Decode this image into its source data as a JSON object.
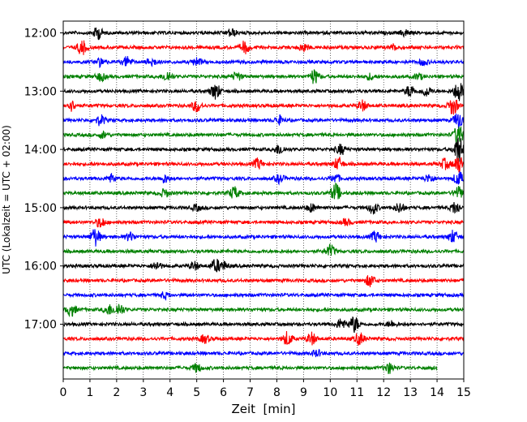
{
  "chart_data": {
    "type": "line",
    "title": "",
    "xlabel": "Zeit  [min]",
    "ylabel": "UTC (Lokalzeit = UTC + 02:00)",
    "xlim": [
      0,
      15
    ],
    "x_ticks": [
      0,
      1,
      2,
      3,
      4,
      5,
      6,
      7,
      8,
      9,
      10,
      11,
      12,
      13,
      14,
      15
    ],
    "y_tick_labels": [
      "12:00",
      "13:00",
      "14:00",
      "15:00",
      "16:00",
      "17:00"
    ],
    "grid": "vertical dotted",
    "trace_interval_min": 15,
    "colors": [
      "#000000",
      "#ff0000",
      "#0000ff",
      "#008000"
    ],
    "series": [
      {
        "start": "12:00",
        "color": "#000000",
        "events": [
          {
            "x": 1.3,
            "amp": 0.6
          },
          {
            "x": 6.3,
            "amp": 0.4
          },
          {
            "x": 12.8,
            "amp": 0.3
          }
        ]
      },
      {
        "start": "12:15",
        "color": "#ff0000",
        "events": [
          {
            "x": 0.7,
            "amp": 0.7
          },
          {
            "x": 6.8,
            "amp": 0.6
          },
          {
            "x": 9.0,
            "amp": 0.4
          },
          {
            "x": 12.4,
            "amp": 0.3
          }
        ]
      },
      {
        "start": "12:30",
        "color": "#0000ff",
        "events": [
          {
            "x": 1.4,
            "amp": 0.4
          },
          {
            "x": 2.4,
            "amp": 0.5
          },
          {
            "x": 3.3,
            "amp": 0.4
          },
          {
            "x": 5.0,
            "amp": 0.4
          },
          {
            "x": 13.5,
            "amp": 0.3
          }
        ]
      },
      {
        "start": "12:45",
        "color": "#008000",
        "events": [
          {
            "x": 1.4,
            "amp": 0.4
          },
          {
            "x": 3.9,
            "amp": 0.5
          },
          {
            "x": 6.5,
            "amp": 0.4
          },
          {
            "x": 9.4,
            "amp": 0.7
          },
          {
            "x": 11.5,
            "amp": 0.3
          },
          {
            "x": 13.3,
            "amp": 0.3
          }
        ]
      },
      {
        "start": "13:00",
        "color": "#000000",
        "events": [
          {
            "x": 5.7,
            "amp": 0.8
          },
          {
            "x": 13.0,
            "amp": 0.6
          },
          {
            "x": 13.6,
            "amp": 0.5
          },
          {
            "x": 14.8,
            "amp": 1.0
          }
        ]
      },
      {
        "start": "13:15",
        "color": "#ff0000",
        "events": [
          {
            "x": 0.3,
            "amp": 0.5
          },
          {
            "x": 5.0,
            "amp": 0.6
          },
          {
            "x": 11.2,
            "amp": 0.5
          },
          {
            "x": 14.6,
            "amp": 0.9
          }
        ]
      },
      {
        "start": "13:30",
        "color": "#0000ff",
        "events": [
          {
            "x": 1.4,
            "amp": 0.5
          },
          {
            "x": 8.1,
            "amp": 0.4
          },
          {
            "x": 14.8,
            "amp": 0.9
          }
        ]
      },
      {
        "start": "13:45",
        "color": "#008000",
        "events": [
          {
            "x": 1.5,
            "amp": 0.3
          },
          {
            "x": 14.8,
            "amp": 1.0
          }
        ]
      },
      {
        "start": "14:00",
        "color": "#000000",
        "events": [
          {
            "x": 8.1,
            "amp": 0.5
          },
          {
            "x": 10.4,
            "amp": 0.5
          },
          {
            "x": 14.8,
            "amp": 1.4
          }
        ]
      },
      {
        "start": "14:15",
        "color": "#ff0000",
        "events": [
          {
            "x": 7.3,
            "amp": 0.5
          },
          {
            "x": 10.3,
            "amp": 0.6
          },
          {
            "x": 14.3,
            "amp": 0.5
          },
          {
            "x": 14.8,
            "amp": 0.9
          }
        ]
      },
      {
        "start": "14:30",
        "color": "#0000ff",
        "events": [
          {
            "x": 1.8,
            "amp": 0.4
          },
          {
            "x": 3.8,
            "amp": 0.4
          },
          {
            "x": 8.1,
            "amp": 0.4
          },
          {
            "x": 10.2,
            "amp": 0.4
          },
          {
            "x": 13.7,
            "amp": 0.4
          },
          {
            "x": 14.8,
            "amp": 0.7
          }
        ]
      },
      {
        "start": "14:45",
        "color": "#008000",
        "events": [
          {
            "x": 3.8,
            "amp": 0.4
          },
          {
            "x": 6.4,
            "amp": 0.6
          },
          {
            "x": 10.2,
            "amp": 0.9
          },
          {
            "x": 14.8,
            "amp": 0.6
          }
        ]
      },
      {
        "start": "15:00",
        "color": "#000000",
        "events": [
          {
            "x": 5.0,
            "amp": 0.3
          },
          {
            "x": 9.3,
            "amp": 0.4
          },
          {
            "x": 11.6,
            "amp": 0.6
          },
          {
            "x": 12.6,
            "amp": 0.5
          },
          {
            "x": 14.7,
            "amp": 0.6
          }
        ]
      },
      {
        "start": "15:15",
        "color": "#ff0000",
        "events": [
          {
            "x": 1.4,
            "amp": 0.5
          },
          {
            "x": 10.6,
            "amp": 0.3
          }
        ]
      },
      {
        "start": "15:30",
        "color": "#0000ff",
        "events": [
          {
            "x": 1.2,
            "amp": 0.9
          },
          {
            "x": 2.5,
            "amp": 0.4
          },
          {
            "x": 11.7,
            "amp": 0.5
          },
          {
            "x": 14.6,
            "amp": 0.6
          }
        ]
      },
      {
        "start": "15:45",
        "color": "#008000",
        "events": [
          {
            "x": 10.0,
            "amp": 0.6
          }
        ]
      },
      {
        "start": "16:00",
        "color": "#000000",
        "events": [
          {
            "x": 3.5,
            "amp": 0.4
          },
          {
            "x": 4.9,
            "amp": 0.4
          },
          {
            "x": 5.7,
            "amp": 0.6
          },
          {
            "x": 6.0,
            "amp": 0.4
          }
        ]
      },
      {
        "start": "16:15",
        "color": "#ff0000",
        "events": [
          {
            "x": 11.5,
            "amp": 0.6
          }
        ]
      },
      {
        "start": "16:30",
        "color": "#0000ff",
        "events": [
          {
            "x": 3.8,
            "amp": 0.3
          }
        ]
      },
      {
        "start": "16:45",
        "color": "#008000",
        "events": [
          {
            "x": 0.3,
            "amp": 0.6
          },
          {
            "x": 1.7,
            "amp": 0.5
          },
          {
            "x": 2.1,
            "amp": 0.6
          }
        ]
      },
      {
        "start": "17:00",
        "color": "#000000",
        "events": [
          {
            "x": 10.4,
            "amp": 0.5
          },
          {
            "x": 10.9,
            "amp": 0.8
          },
          {
            "x": 12.3,
            "amp": 0.3
          }
        ]
      },
      {
        "start": "17:15",
        "color": "#ff0000",
        "events": [
          {
            "x": 5.3,
            "amp": 0.4
          },
          {
            "x": 8.4,
            "amp": 0.7
          },
          {
            "x": 9.3,
            "amp": 0.6
          },
          {
            "x": 11.1,
            "amp": 0.6
          }
        ]
      },
      {
        "start": "17:30",
        "color": "#0000ff",
        "events": [
          {
            "x": 9.5,
            "amp": 0.3
          }
        ]
      },
      {
        "start": "17:45",
        "color": "#008000",
        "end": 14.0,
        "events": [
          {
            "x": 5.0,
            "amp": 0.4
          },
          {
            "x": 12.2,
            "amp": 0.5
          }
        ]
      }
    ]
  }
}
